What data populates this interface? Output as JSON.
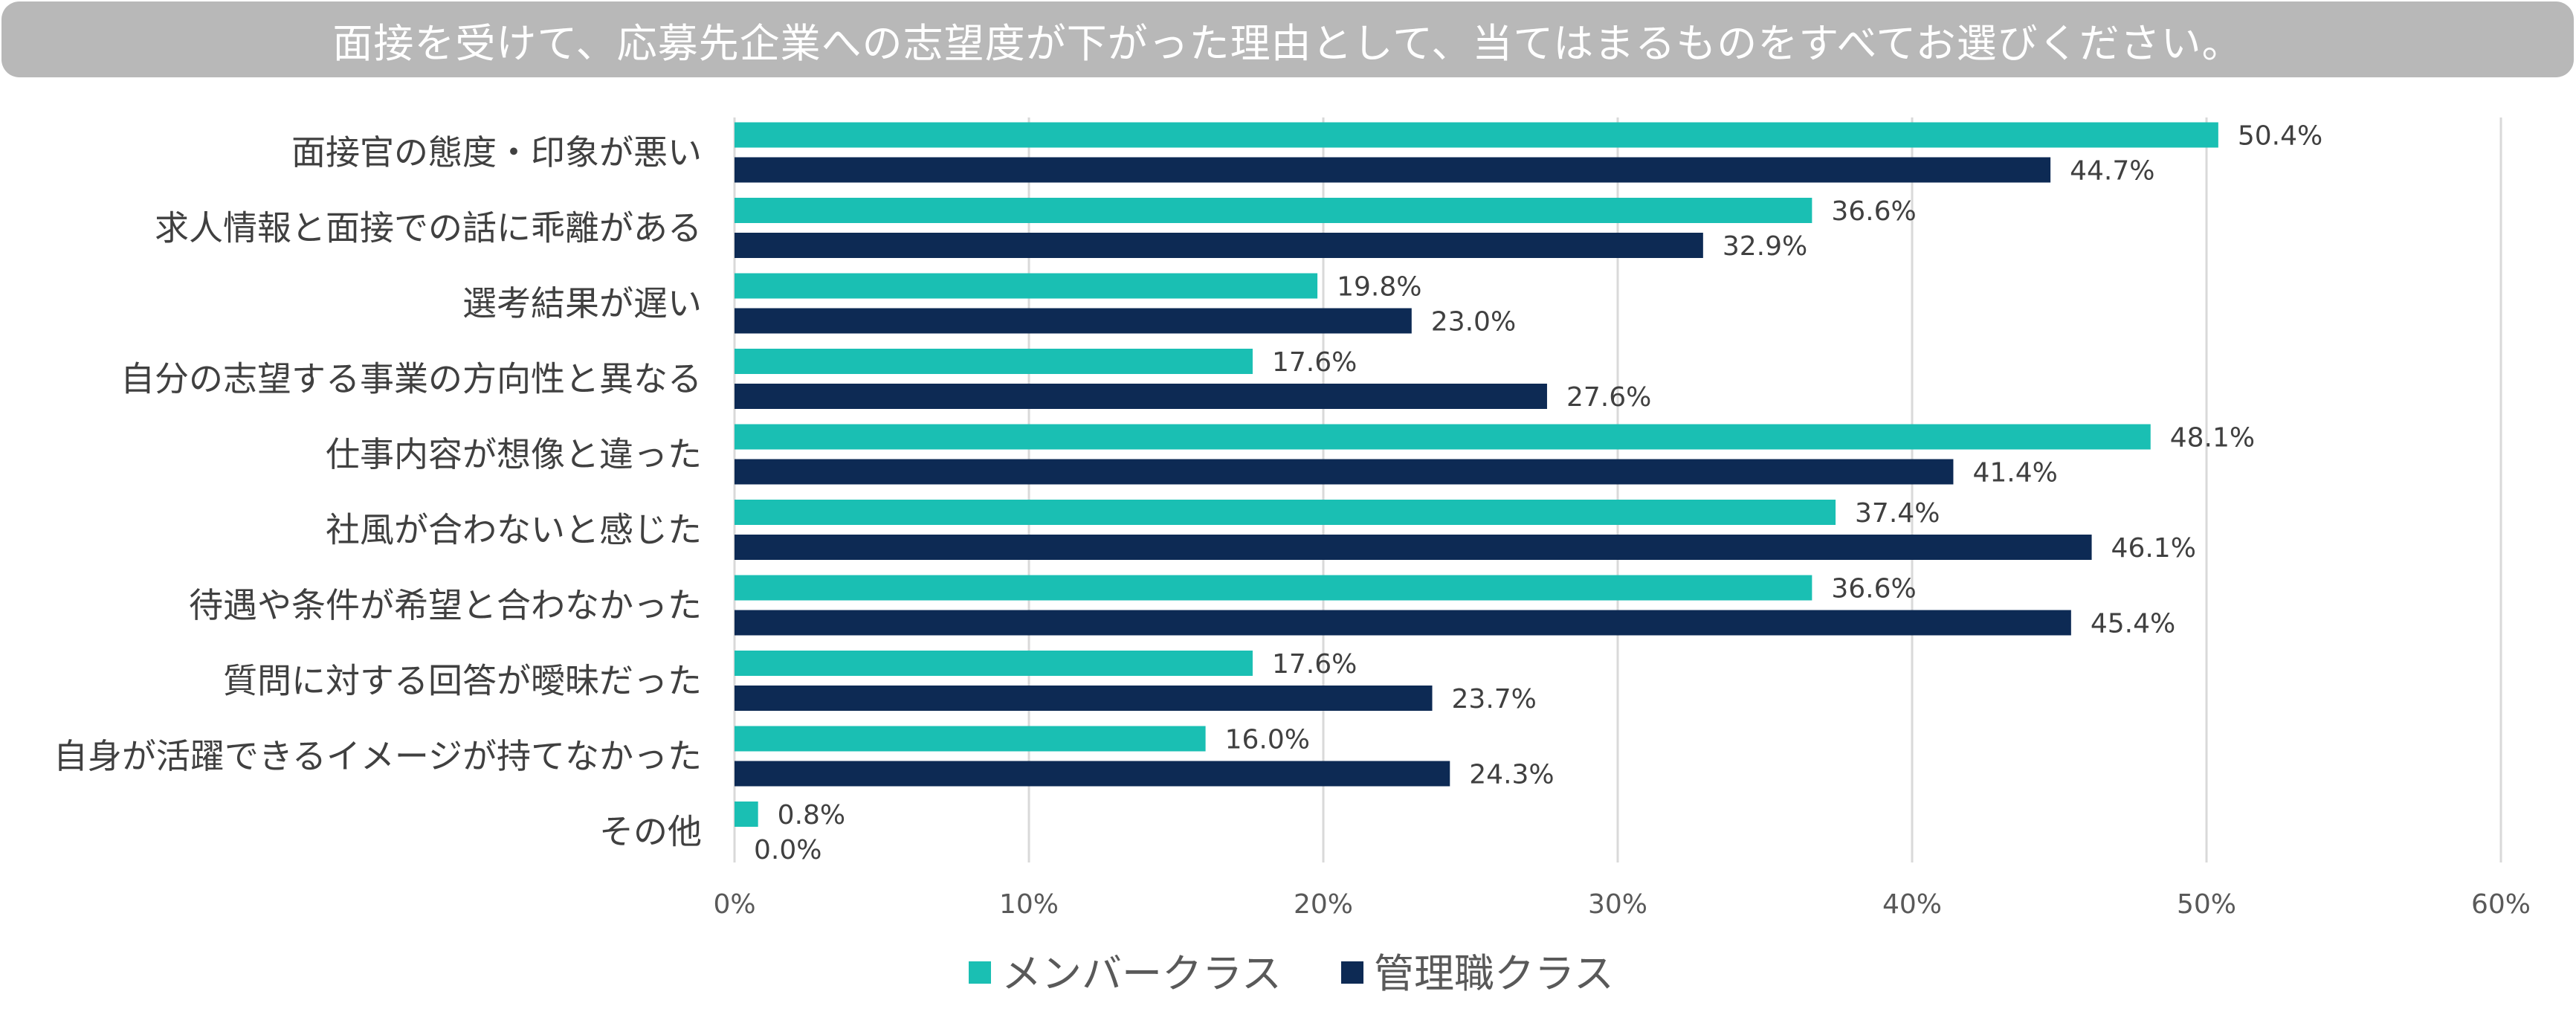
{
  "chart_data": {
    "type": "bar",
    "orientation": "horizontal",
    "title": "面接を受けて、応募先企業への志望度が下がった理由として、当てはまるものをすべてお選びください。",
    "categories": [
      "面接官の態度・印象が悪い",
      "求人情報と面接での話に乖離がある",
      "選考結果が遅い",
      "自分の志望する事業の方向性と異なる",
      "仕事内容が想像と違った",
      "社風が合わないと感じた",
      "待遇や条件が希望と合わなかった",
      "質問に対する回答が曖昧だった",
      "自身が活躍できるイメージが持てなかった",
      "その他"
    ],
    "series": [
      {
        "name": "メンバークラス",
        "color": "#1ABFB3",
        "values": [
          50.4,
          36.6,
          19.8,
          17.6,
          48.1,
          37.4,
          36.6,
          17.6,
          16.0,
          0.8
        ],
        "labels": [
          "50.4%",
          "36.6%",
          "19.8%",
          "17.6%",
          "48.1%",
          "37.4%",
          "36.6%",
          "17.6%",
          "16.0%",
          "0.8%"
        ]
      },
      {
        "name": "管理職クラス",
        "color": "#0D2A54",
        "values": [
          44.7,
          32.9,
          23.0,
          27.6,
          41.4,
          46.1,
          45.4,
          23.7,
          24.3,
          0.0
        ],
        "labels": [
          "44.7%",
          "32.9%",
          "23.0%",
          "27.6%",
          "41.4%",
          "46.1%",
          "45.4%",
          "23.7%",
          "24.3%",
          "0.0%"
        ]
      }
    ],
    "xlim": [
      0,
      60
    ],
    "xticks": [
      0,
      10,
      20,
      30,
      40,
      50,
      60
    ],
    "xtick_labels": [
      "0%",
      "10%",
      "20%",
      "30%",
      "40%",
      "50%",
      "60%"
    ],
    "grid": true,
    "gridline_color": "#d9d9d9",
    "legend_position": "bottom"
  }
}
